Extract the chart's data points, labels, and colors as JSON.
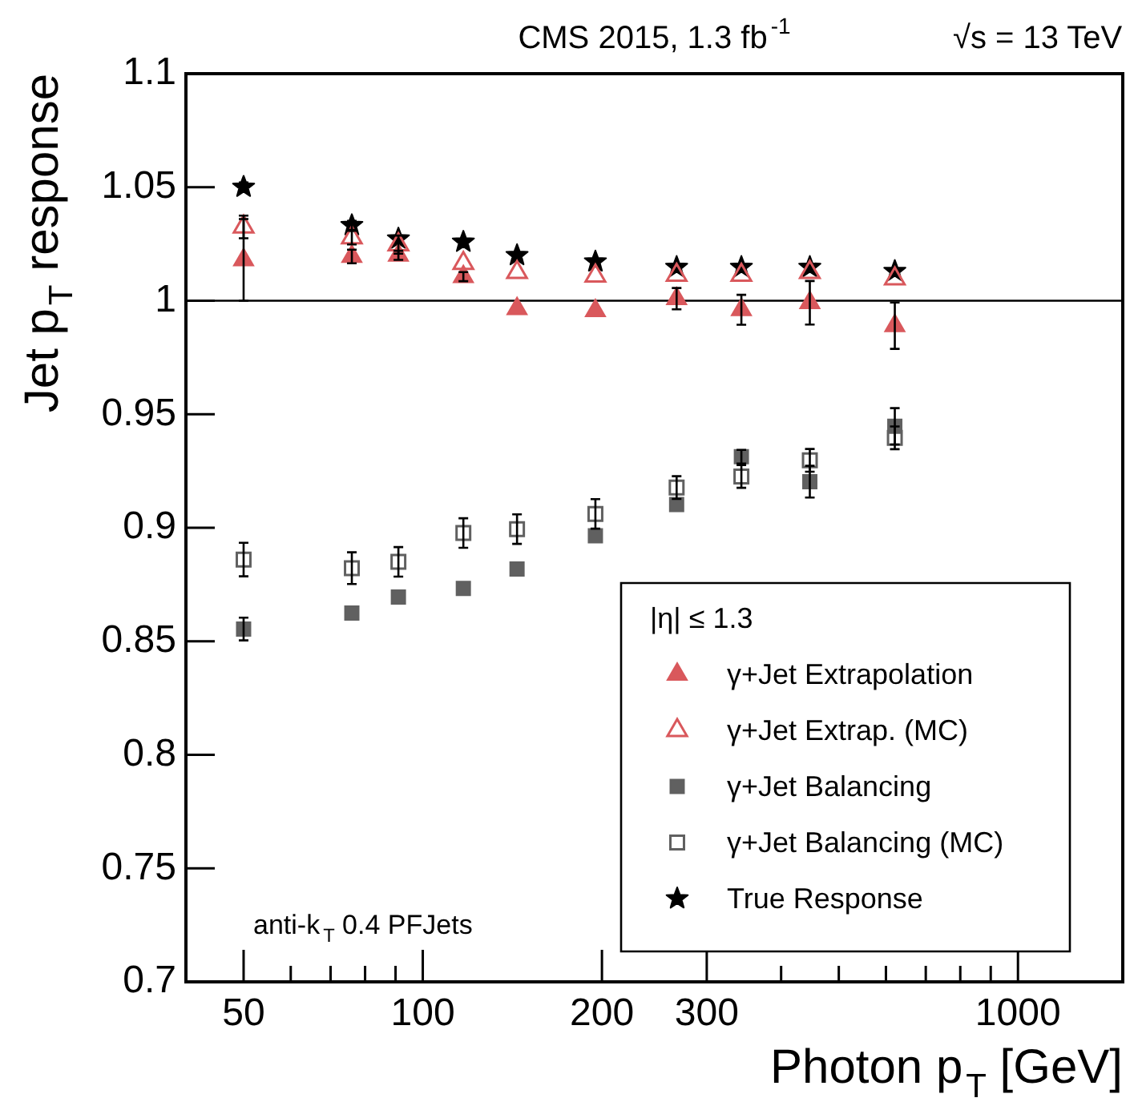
{
  "chart_data": {
    "type": "scatter",
    "title": "CMS 2015, 1.3 fb$^{-1}$",
    "xlabel": "Photon p$_{T}$ [GeV]",
    "ylabel": "Jet p$_{T}$ response",
    "legend_title": "|η| ≤ 1.3",
    "legend": "bottom right",
    "grid": false,
    "log": "x",
    "annotations": [
      "√s = 13 TeV",
      "anti-k$_{T}$ 0.4 PFJets"
    ],
    "x": [
      50,
      76,
      91,
      117,
      144,
      195,
      267,
      343,
      447,
      621
    ],
    "xlim": [
      40,
      1500
    ],
    "xticks": [
      {
        "value": 40,
        "label": null
      },
      50,
      {
        "value": 60,
        "label": null
      },
      {
        "value": 70,
        "label": null
      },
      {
        "value": 80,
        "label": null
      },
      {
        "value": 90,
        "label": null
      },
      100,
      200,
      300,
      {
        "value": 400,
        "label": null
      },
      {
        "value": 500,
        "label": null
      },
      {
        "value": 600,
        "label": null
      },
      {
        "value": 700,
        "label": null
      },
      {
        "value": 800,
        "label": null
      },
      {
        "value": 900,
        "label": null
      },
      1000
    ],
    "ylim": [
      0.7,
      1.1
    ],
    "yticks": [
      0.7,
      0.75,
      0.8,
      0.85,
      0.9,
      0.95,
      1,
      1.05,
      1.1
    ],
    "ref_lines": [
      {
        "axis": "y",
        "value": 1,
        "color": "#000000"
      }
    ],
    "series": [
      {
        "name": "γ+Jet Extrapolation",
        "color": "#d9585c",
        "marker": "triangle",
        "values": [
          1.018,
          1.0195,
          1.02,
          1.0106,
          0.9965,
          0.9956,
          1.0009,
          0.996,
          0.9991,
          0.989
        ],
        "errors": [
          0.018,
          0.003,
          0.002,
          0.002,
          null,
          null,
          0.0047,
          0.0066,
          0.0096,
          0.0102
        ]
      },
      {
        "name": "γ+Jet Extrap. (MC)",
        "color": "#d9585c",
        "marker": "triangle",
        "values": [
          1.0325,
          1.0278,
          1.0247,
          1.0165,
          1.0125,
          1.0109,
          1.0113,
          1.0113,
          1.0125,
          1.0097
        ],
        "errors": [
          0.005,
          0.003,
          0.004,
          null,
          null,
          null,
          null,
          null,
          null,
          null
        ]
      },
      {
        "name": "γ+Jet Balancing",
        "color": "#606060",
        "marker": "square",
        "values": [
          0.8554,
          0.8624,
          0.8695,
          0.8733,
          0.8818,
          0.8965,
          0.9102,
          0.9313,
          0.9203,
          0.9447
        ],
        "errors": [
          0.005,
          null,
          null,
          null,
          null,
          null,
          null,
          0.003,
          0.007,
          0.008
        ]
      },
      {
        "name": "γ+Jet Balancing (MC)",
        "color": "#606060",
        "marker": "square",
        "values": [
          0.886,
          0.8822,
          0.885,
          0.8977,
          0.8994,
          0.9061,
          0.9177,
          0.9226,
          0.9297,
          0.9396
        ],
        "errors": [
          0.0074,
          0.007,
          0.0065,
          0.0065,
          0.0065,
          0.0065,
          0.005,
          0.005,
          0.005,
          0.005
        ]
      },
      {
        "name": "True Response",
        "color": "#000000",
        "marker": "star",
        "values": [
          1.0501,
          1.0332,
          1.0273,
          1.0259,
          1.02,
          1.0172,
          1.0148,
          1.0148,
          1.0148,
          1.013
        ],
        "errors": [
          0.002,
          0.002,
          null,
          null,
          null,
          null,
          null,
          null,
          null,
          null
        ]
      }
    ]
  }
}
